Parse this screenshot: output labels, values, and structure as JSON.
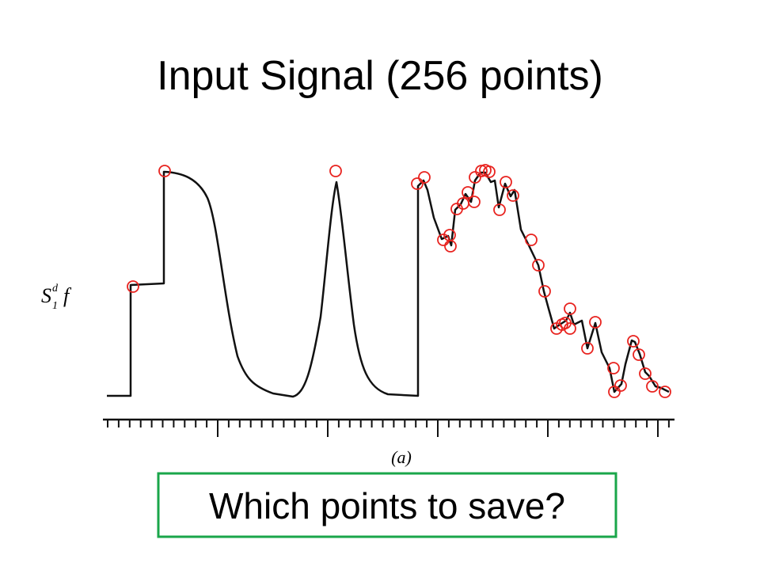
{
  "title": "Input Signal (256 points)",
  "figure": {
    "y_label": {
      "symbol": "S",
      "superscript": "d",
      "subscript": "1",
      "function": "f"
    },
    "caption": "(a)"
  },
  "question": "Which points to save?"
}
